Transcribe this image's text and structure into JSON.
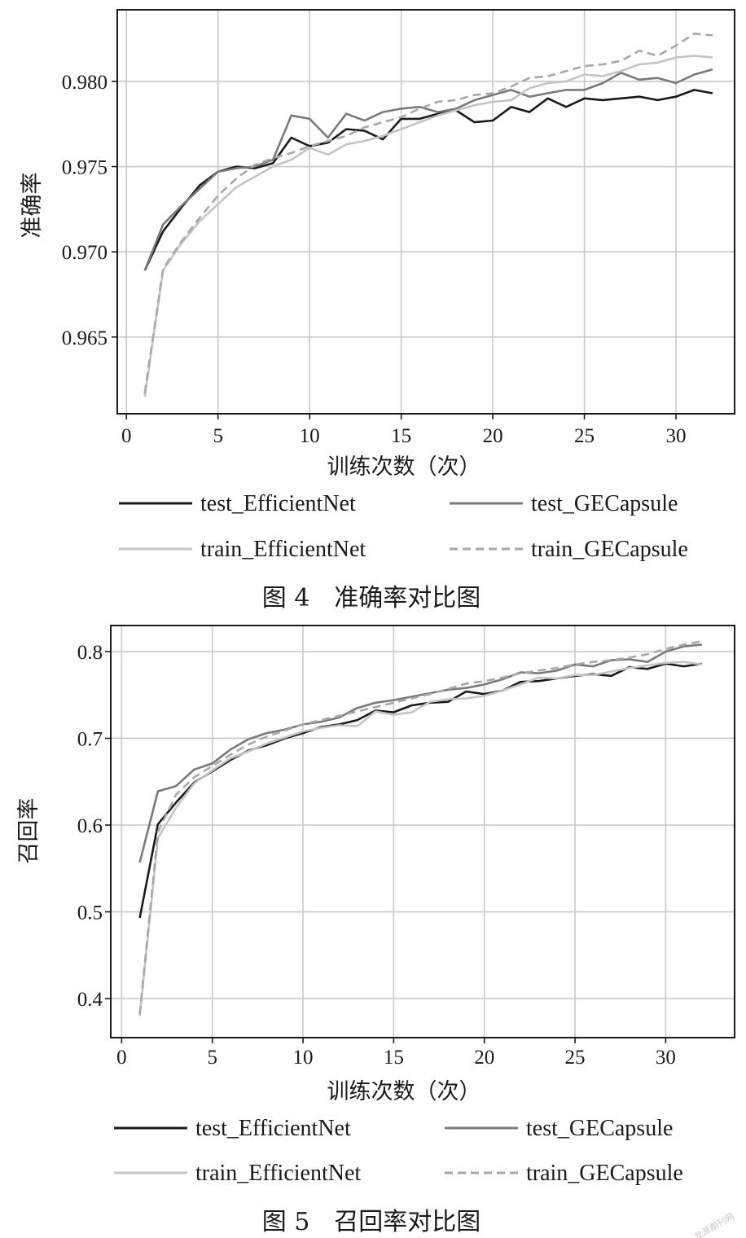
{
  "chart_data": [
    {
      "type": "line",
      "xlabel": "训练次数（次）",
      "ylabel": "准确率",
      "xlim": [
        -0.5,
        33.2
      ],
      "ylim": [
        0.9605,
        0.9842
      ],
      "xticks": [
        "0",
        "5",
        "10",
        "15",
        "20",
        "25",
        "30"
      ],
      "yticks": [
        "0.965",
        "0.970",
        "0.975",
        "0.980"
      ],
      "grid": true,
      "legend_position": "bottom",
      "caption": "图 4　准确率对比图",
      "x": [
        1,
        2,
        3,
        4,
        5,
        6,
        7,
        8,
        9,
        10,
        11,
        12,
        13,
        14,
        15,
        16,
        17,
        18,
        19,
        20,
        21,
        22,
        23,
        24,
        25,
        26,
        27,
        28,
        29,
        30,
        31,
        32
      ],
      "series": [
        {
          "name": "test_EfficientNet",
          "color": "#1a1a1a",
          "dash": "solid",
          "values": [
            0.9689,
            0.9712,
            0.9726,
            0.9739,
            0.9747,
            0.975,
            0.9749,
            0.9752,
            0.9767,
            0.9762,
            0.9764,
            0.9772,
            0.9771,
            0.9766,
            0.9778,
            0.9778,
            0.9781,
            0.9783,
            0.9776,
            0.9777,
            0.9785,
            0.9782,
            0.979,
            0.9785,
            0.979,
            0.9789,
            0.979,
            0.9791,
            0.9789,
            0.9791,
            0.9795,
            0.9793
          ]
        },
        {
          "name": "test_GECapsule",
          "color": "#7a7a7a",
          "dash": "solid",
          "values": [
            0.9689,
            0.9716,
            0.9727,
            0.9737,
            0.9747,
            0.9749,
            0.975,
            0.9754,
            0.978,
            0.9778,
            0.9767,
            0.9781,
            0.9777,
            0.9782,
            0.9784,
            0.9785,
            0.9782,
            0.9784,
            0.9789,
            0.9792,
            0.9795,
            0.9791,
            0.9793,
            0.9795,
            0.9795,
            0.9799,
            0.9805,
            0.9801,
            0.9802,
            0.9799,
            0.9804,
            0.9807
          ]
        },
        {
          "name": "train_EfficientNet",
          "color": "#c4c4c4",
          "dash": "solid",
          "values": [
            0.9615,
            0.9689,
            0.9705,
            0.9718,
            0.9728,
            0.9738,
            0.9744,
            0.975,
            0.9754,
            0.9761,
            0.9757,
            0.9763,
            0.9765,
            0.9768,
            0.9772,
            0.9776,
            0.978,
            0.9783,
            0.9786,
            0.9788,
            0.9789,
            0.9796,
            0.9799,
            0.98,
            0.9804,
            0.9803,
            0.9806,
            0.981,
            0.9811,
            0.9814,
            0.9815,
            0.9814
          ]
        },
        {
          "name": "train_GECapsule",
          "color": "#a8a8a8",
          "dash": "dashed",
          "values": [
            0.9617,
            0.969,
            0.9706,
            0.972,
            0.9733,
            0.9743,
            0.9751,
            0.9755,
            0.9758,
            0.9762,
            0.9765,
            0.9768,
            0.9773,
            0.9776,
            0.9779,
            0.9784,
            0.9788,
            0.9789,
            0.9792,
            0.9793,
            0.9797,
            0.9802,
            0.9803,
            0.9806,
            0.9809,
            0.981,
            0.9812,
            0.9818,
            0.9815,
            0.9821,
            0.9828,
            0.9827
          ]
        }
      ]
    },
    {
      "type": "line",
      "xlabel": "训练次数（次）",
      "ylabel": "召回率",
      "xlim": [
        -0.6,
        33.8
      ],
      "ylim": [
        0.355,
        0.83
      ],
      "xticks": [
        "0",
        "5",
        "10",
        "15",
        "20",
        "25",
        "30"
      ],
      "yticks": [
        "0.4",
        "0.5",
        "0.6",
        "0.7",
        "0.8"
      ],
      "grid": true,
      "legend_position": "bottom",
      "caption": "图 5　召回率对比图",
      "x": [
        1,
        2,
        3,
        4,
        5,
        6,
        7,
        8,
        9,
        10,
        11,
        12,
        13,
        14,
        15,
        16,
        17,
        18,
        19,
        20,
        21,
        22,
        23,
        24,
        25,
        26,
        27,
        28,
        29,
        30,
        31,
        32
      ],
      "series": [
        {
          "name": "test_EfficientNet",
          "color": "#1a1a1a",
          "dash": "solid",
          "values": [
            0.493,
            0.601,
            0.626,
            0.649,
            0.662,
            0.675,
            0.686,
            0.692,
            0.7,
            0.706,
            0.713,
            0.716,
            0.721,
            0.732,
            0.73,
            0.738,
            0.741,
            0.742,
            0.754,
            0.751,
            0.755,
            0.765,
            0.766,
            0.769,
            0.772,
            0.774,
            0.772,
            0.782,
            0.78,
            0.786,
            0.783,
            0.786
          ]
        },
        {
          "name": "test_GECapsule",
          "color": "#7a7a7a",
          "dash": "solid",
          "values": [
            0.557,
            0.639,
            0.645,
            0.664,
            0.671,
            0.687,
            0.699,
            0.706,
            0.71,
            0.716,
            0.719,
            0.724,
            0.735,
            0.741,
            0.744,
            0.748,
            0.752,
            0.756,
            0.758,
            0.762,
            0.768,
            0.776,
            0.775,
            0.778,
            0.785,
            0.783,
            0.79,
            0.791,
            0.788,
            0.8,
            0.806,
            0.808
          ]
        },
        {
          "name": "train_EfficientNet",
          "color": "#c4c4c4",
          "dash": "solid",
          "values": [
            0.38,
            0.585,
            0.62,
            0.648,
            0.663,
            0.677,
            0.685,
            0.694,
            0.701,
            0.708,
            0.712,
            0.715,
            0.714,
            0.731,
            0.727,
            0.73,
            0.742,
            0.745,
            0.746,
            0.749,
            0.755,
            0.762,
            0.77,
            0.769,
            0.773,
            0.773,
            0.777,
            0.781,
            0.784,
            0.787,
            0.788,
            0.785
          ]
        },
        {
          "name": "train_GECapsule",
          "color": "#a8a8a8",
          "dash": "dashed",
          "values": [
            0.382,
            0.592,
            0.635,
            0.655,
            0.668,
            0.681,
            0.693,
            0.702,
            0.709,
            0.716,
            0.721,
            0.726,
            0.731,
            0.736,
            0.741,
            0.746,
            0.751,
            0.757,
            0.763,
            0.766,
            0.77,
            0.775,
            0.778,
            0.781,
            0.785,
            0.788,
            0.79,
            0.793,
            0.797,
            0.803,
            0.808,
            0.812
          ]
        }
      ]
    }
  ],
  "watermark": "龙源期刊网"
}
